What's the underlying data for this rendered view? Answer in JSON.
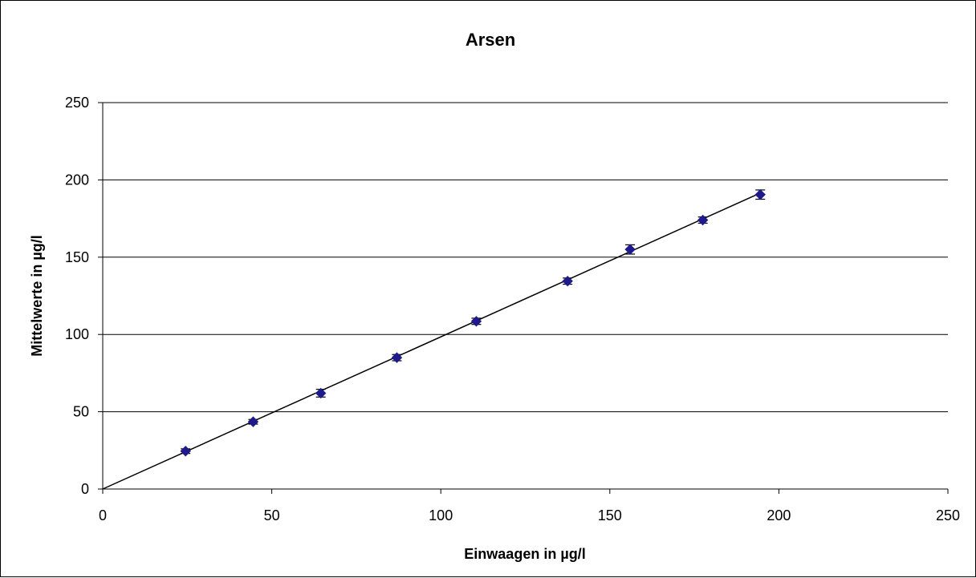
{
  "chart_data": {
    "type": "scatter",
    "title": "Arsen",
    "xlabel": "Einwaagen in µg/l",
    "ylabel": "Mittelwerte in µg/l",
    "xlim": [
      0,
      250
    ],
    "ylim": [
      0,
      250
    ],
    "xticks": [
      0,
      50,
      100,
      150,
      200,
      250
    ],
    "yticks": [
      0,
      50,
      100,
      150,
      200,
      250
    ],
    "xtick_labels": [
      "0",
      "50",
      "100",
      "150",
      "200",
      "250"
    ],
    "ytick_labels": [
      "0",
      "50",
      "100",
      "150",
      "200",
      "250"
    ],
    "grid": "horizontal",
    "legend": "none",
    "series": [
      {
        "marker": "diamond",
        "color": "#1f1a8c",
        "x": [
          24.5,
          44.5,
          64.5,
          87,
          110.5,
          137.5,
          156,
          177.5,
          194.5
        ],
        "y": [
          24.5,
          43.5,
          62,
          85,
          108.5,
          134.5,
          155,
          174,
          190.5
        ],
        "error": [
          1.5,
          1.5,
          2.5,
          2,
          2,
          2,
          3,
          2,
          3
        ]
      }
    ],
    "trendline": {
      "type": "linear",
      "color": "#000000",
      "x": [
        0,
        194.5
      ],
      "y": [
        0,
        191.5
      ]
    }
  }
}
